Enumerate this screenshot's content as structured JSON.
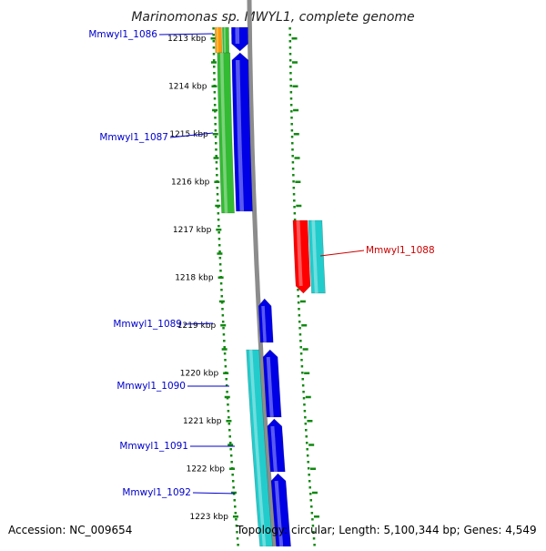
{
  "title": "Marinomonas sp. MWYL1, complete genome",
  "footer": {
    "accession": "Accession: NC_009654",
    "topology": "Topology: circular; Length: 5,100,344 bp; Genes: 4,549"
  },
  "kbp_ticks": [
    {
      "label": "1213 kbp",
      "kbp": 1213
    },
    {
      "label": "1214 kbp",
      "kbp": 1214
    },
    {
      "label": "1215 kbp",
      "kbp": 1215
    },
    {
      "label": "1216 kbp",
      "kbp": 1216
    },
    {
      "label": "1217 kbp",
      "kbp": 1217
    },
    {
      "label": "1218 kbp",
      "kbp": 1218
    },
    {
      "label": "1219 kbp",
      "kbp": 1219
    },
    {
      "label": "1220 kbp",
      "kbp": 1220
    },
    {
      "label": "1221 kbp",
      "kbp": 1221
    },
    {
      "label": "1222 kbp",
      "kbp": 1222
    },
    {
      "label": "1223 kbp",
      "kbp": 1223
    }
  ],
  "gene_labels": [
    {
      "name": "Mmwyl1_1086",
      "strand": "forward",
      "color": "#0000cc"
    },
    {
      "name": "Mmwyl1_1087",
      "strand": "forward",
      "color": "#0000cc"
    },
    {
      "name": "Mmwyl1_1088",
      "strand": "reverse",
      "color": "#cc0000"
    },
    {
      "name": "Mmwyl1_1089",
      "strand": "forward",
      "color": "#0000cc"
    },
    {
      "name": "Mmwyl1_1090",
      "strand": "forward",
      "color": "#0000cc"
    },
    {
      "name": "Mmwyl1_1091",
      "strand": "forward",
      "color": "#0000cc"
    },
    {
      "name": "Mmwyl1_1092",
      "strand": "forward",
      "color": "#0000cc"
    }
  ],
  "colors": {
    "backbone": "#8c8c8c",
    "cds_forward": "#0000e6",
    "cds_reverse": "#ff0000",
    "cog_green": "#33bb33",
    "cog_cyan": "#22cccc",
    "cog_orange": "#ff9900",
    "tick_green": "#118811",
    "label_blue": "#0000cc",
    "label_red": "#cc0000"
  }
}
